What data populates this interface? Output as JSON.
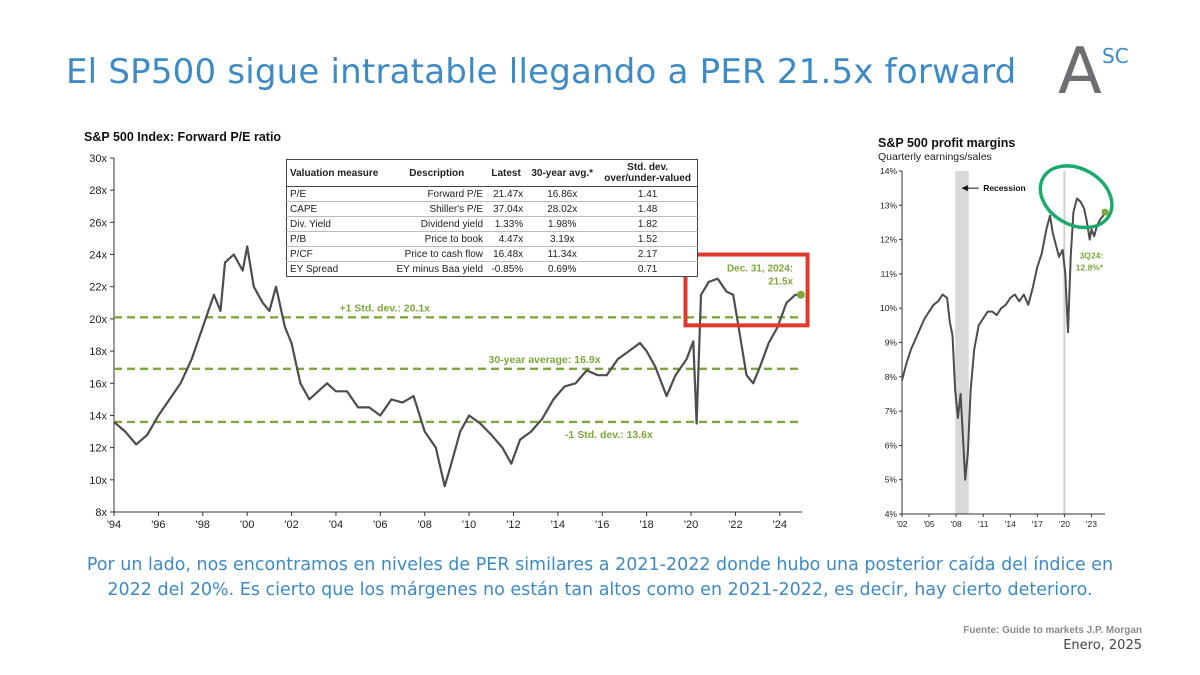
{
  "slide": {
    "title": "El SP500 sigue intratable llegando a PER 21.5x forward",
    "logo_letter": "A",
    "logo_sup": "SC",
    "body": "Por un lado, nos encontramos en niveles de PER similares a 2021-2022 donde hubo una posterior caída del índice en 2022 del 20%. Es cierto que los márgenes no están tan altos como en 2021-2022, es decir, hay cierto deterioro.",
    "source": "Fuente: Guide to markets J.P. Morgan",
    "date": "Enero, 2025",
    "colors": {
      "title": "#3d8ac4",
      "line": "#4d4d4f",
      "bands": "#7ea63c",
      "highlight_box": "#e0392b",
      "circle": "#1aaa6a"
    }
  },
  "valuation_table": {
    "headers": [
      "Valuation measure",
      "Description",
      "Latest",
      "30-year avg.*",
      "Std. dev.\nover/under-valued"
    ],
    "rows": [
      [
        "P/E",
        "Forward P/E",
        "21.47x",
        "16.86x",
        "1.41"
      ],
      [
        "CAPE",
        "Shiller's P/E",
        "37.04x",
        "28.02x",
        "1.48"
      ],
      [
        "Div. Yield",
        "Dividend yield",
        "1.33%",
        "1.98%",
        "1.82"
      ],
      [
        "P/B",
        "Price to book",
        "4.47x",
        "3.19x",
        "1.52"
      ],
      [
        "P/CF",
        "Price to cash flow",
        "16.48x",
        "11.34x",
        "2.17"
      ],
      [
        "EY Spread",
        "EY minus Baa yield",
        "-0.85%",
        "0.69%",
        "0.71"
      ]
    ]
  },
  "chart_data": [
    {
      "type": "line",
      "title": "S&P 500 Index: Forward P/E ratio",
      "ylim": [
        8,
        30
      ],
      "xlim": [
        1994,
        2025
      ],
      "y_ticks": [
        "8x",
        "10x",
        "12x",
        "14x",
        "16x",
        "18x",
        "20x",
        "22x",
        "24x",
        "26x",
        "28x",
        "30x"
      ],
      "x_ticks": [
        "'94",
        "'96",
        "'98",
        "'00",
        "'02",
        "'04",
        "'06",
        "'08",
        "'10",
        "'12",
        "'14",
        "'16",
        "'18",
        "'20",
        "'22",
        "'24"
      ],
      "reference_lines": [
        {
          "label": "+1 Std. dev.: 20.1x",
          "value": 20.1
        },
        {
          "label": "30-year average: 16.9x",
          "value": 16.9
        },
        {
          "label": "-1 Std. dev.: 13.6x",
          "value": 13.6
        }
      ],
      "annotation": {
        "label": "Dec. 31, 2024:",
        "value_label": "21.5x",
        "x": 2024.95,
        "y": 21.5
      },
      "x": [
        1994.0,
        1994.5,
        1995.0,
        1995.5,
        1996.0,
        1996.5,
        1997.0,
        1997.5,
        1998.0,
        1998.5,
        1998.8,
        1999.0,
        1999.4,
        1999.8,
        2000.0,
        2000.3,
        2000.7,
        2001.0,
        2001.3,
        2001.7,
        2002.0,
        2002.4,
        2002.8,
        2003.2,
        2003.6,
        2004.0,
        2004.5,
        2005.0,
        2005.5,
        2006.0,
        2006.5,
        2007.0,
        2007.5,
        2008.0,
        2008.5,
        2008.9,
        2009.2,
        2009.6,
        2010.0,
        2010.5,
        2011.0,
        2011.5,
        2011.9,
        2012.3,
        2012.8,
        2013.3,
        2013.8,
        2014.3,
        2014.8,
        2015.3,
        2015.8,
        2016.2,
        2016.7,
        2017.2,
        2017.7,
        2018.0,
        2018.4,
        2018.9,
        2019.3,
        2019.8,
        2020.1,
        2020.25,
        2020.45,
        2020.8,
        2021.2,
        2021.6,
        2021.9,
        2022.2,
        2022.5,
        2022.8,
        2023.1,
        2023.5,
        2023.9,
        2024.3,
        2024.7,
        2024.95
      ],
      "y": [
        13.6,
        13.0,
        12.2,
        12.8,
        14.0,
        15.0,
        16.0,
        17.5,
        19.5,
        21.5,
        20.5,
        23.5,
        24.0,
        23.0,
        24.5,
        22.0,
        21.0,
        20.5,
        22.0,
        19.5,
        18.5,
        16.0,
        15.0,
        15.5,
        16.0,
        15.5,
        15.5,
        14.5,
        14.5,
        14.0,
        15.0,
        14.8,
        15.2,
        13.0,
        12.0,
        9.6,
        11.0,
        13.0,
        14.0,
        13.5,
        12.8,
        12.0,
        11.0,
        12.5,
        13.0,
        13.8,
        15.0,
        15.8,
        16.0,
        16.8,
        16.5,
        16.5,
        17.5,
        18.0,
        18.5,
        18.0,
        17.0,
        15.2,
        16.5,
        17.5,
        18.6,
        13.5,
        21.5,
        22.3,
        22.5,
        21.7,
        21.5,
        19.0,
        16.5,
        16.0,
        17.0,
        18.5,
        19.5,
        21.0,
        21.5,
        21.5
      ]
    },
    {
      "type": "line",
      "title": "S&P 500 profit margins",
      "subtitle": "Quarterly earnings/sales",
      "ylim": [
        4,
        14
      ],
      "xlim": [
        2002,
        2024.5
      ],
      "y_ticks": [
        "4%",
        "5%",
        "6%",
        "7%",
        "8%",
        "9%",
        "10%",
        "11%",
        "12%",
        "13%",
        "14%"
      ],
      "x_ticks": [
        "'02",
        "'05",
        "'08",
        "'11",
        "'14",
        "'17",
        "'20",
        "'23"
      ],
      "recession_band": [
        2007.9,
        2009.4
      ],
      "recession_line": 2020.0,
      "recession_label": "Recession",
      "annotation": {
        "label": "3Q24:",
        "value_label": "12.8%*",
        "x": 2024.5,
        "y": 12.8
      },
      "x": [
        2002.0,
        2002.5,
        2003.0,
        2003.5,
        2004.0,
        2004.5,
        2005.0,
        2005.5,
        2006.0,
        2006.5,
        2007.0,
        2007.3,
        2007.6,
        2007.9,
        2008.2,
        2008.5,
        2008.8,
        2009.0,
        2009.3,
        2009.6,
        2010.0,
        2010.5,
        2011.0,
        2011.5,
        2012.0,
        2012.5,
        2013.0,
        2013.5,
        2014.0,
        2014.5,
        2015.0,
        2015.5,
        2016.0,
        2016.5,
        2017.0,
        2017.5,
        2018.0,
        2018.4,
        2018.7,
        2019.0,
        2019.4,
        2019.8,
        2020.1,
        2020.4,
        2020.7,
        2021.0,
        2021.4,
        2021.8,
        2022.2,
        2022.5,
        2022.8,
        2023.0,
        2023.3,
        2023.6,
        2024.0,
        2024.3,
        2024.5
      ],
      "y": [
        7.9,
        8.4,
        8.8,
        9.1,
        9.4,
        9.7,
        9.9,
        10.1,
        10.2,
        10.4,
        10.3,
        9.6,
        9.2,
        7.6,
        6.8,
        7.5,
        6.0,
        5.0,
        5.8,
        7.6,
        8.8,
        9.5,
        9.7,
        9.9,
        9.9,
        9.8,
        10.0,
        10.1,
        10.3,
        10.4,
        10.2,
        10.4,
        10.1,
        10.6,
        11.2,
        11.6,
        12.3,
        12.7,
        12.2,
        11.9,
        11.5,
        11.7,
        11.0,
        9.3,
        11.5,
        12.8,
        13.2,
        13.1,
        12.9,
        12.5,
        12.0,
        12.3,
        12.1,
        12.4,
        12.6,
        12.7,
        12.8
      ]
    }
  ]
}
